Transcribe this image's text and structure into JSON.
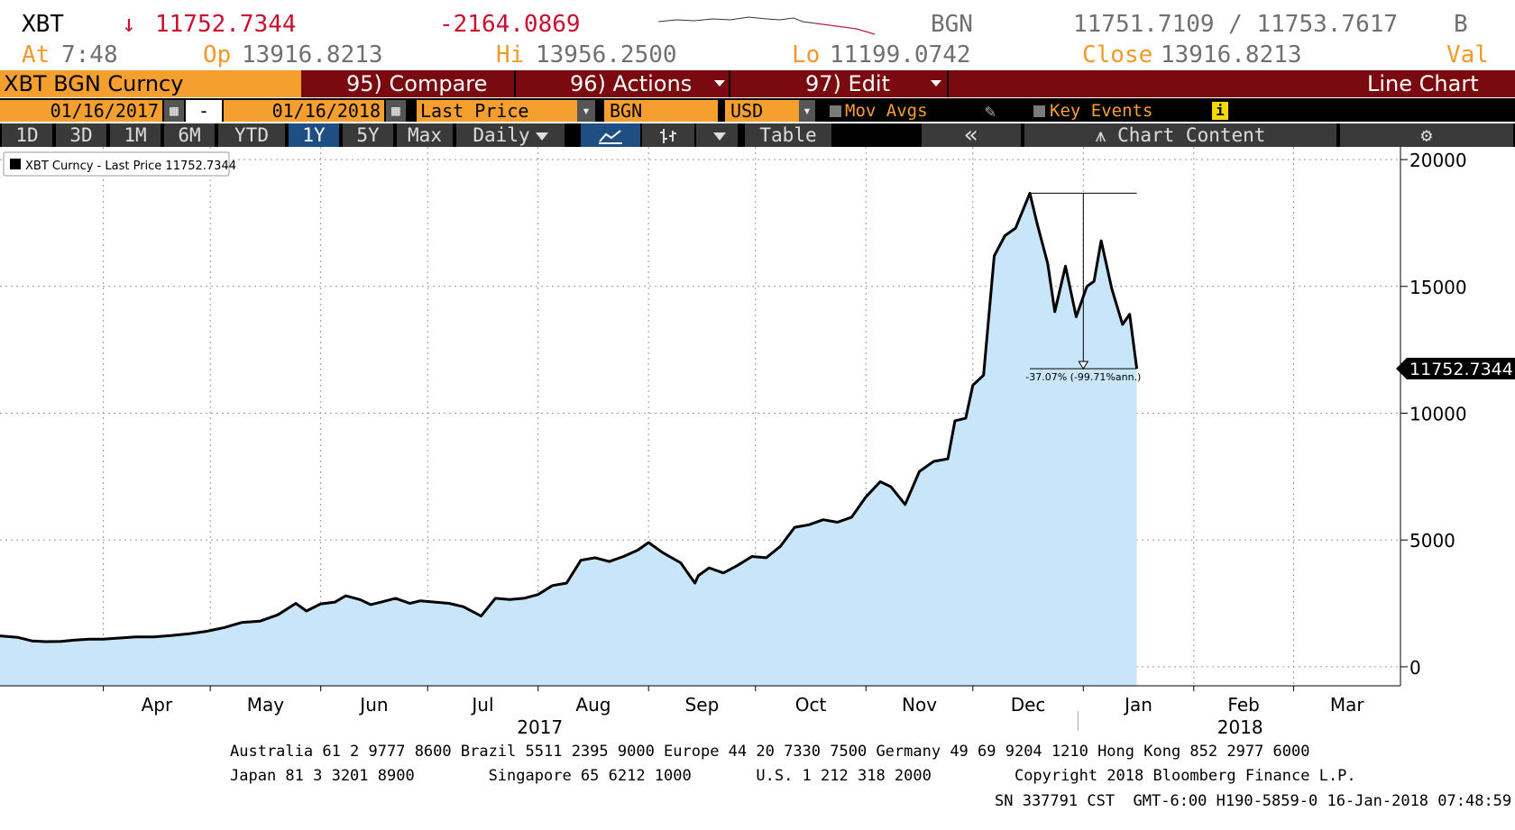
{
  "header": {
    "ticker": "XBT",
    "arrow": "↓",
    "last": "11752.7344",
    "change": "-2164.0869",
    "source": "BGN",
    "bid_ask": "11751.7109 / 11753.7617",
    "b_label": "B",
    "at_label": "At",
    "at_value": "7:48",
    "op_label": "Op",
    "op_value": "13916.8213",
    "hi_label": "Hi",
    "hi_value": "13956.2500",
    "lo_label": "Lo",
    "lo_value": "11199.0742",
    "close_label": "Close",
    "close_value": "13916.8213",
    "val_label": "Val"
  },
  "toolbar1": {
    "security": "XBT BGN Curncy",
    "compare": "95) Compare",
    "actions": "96) Actions",
    "edit": "97) Edit",
    "chart_type": "Line Chart"
  },
  "toolbar2": {
    "start_date": "01/16/2017",
    "dash": "-",
    "end_date": "01/16/2018",
    "field": "Last Price",
    "source": "BGN",
    "currency": "USD",
    "mov_avgs": "Mov Avgs",
    "key_events": "Key Events",
    "info": "i"
  },
  "toolbar3": {
    "periods": [
      "1D",
      "3D",
      "1M",
      "6M",
      "YTD",
      "1Y",
      "5Y",
      "Max"
    ],
    "selected": "1Y",
    "frequency": "Daily",
    "table": "Table",
    "collapse": "«",
    "chart_content": "Chart Content",
    "settings_icon": "gear-icon",
    "line_icon": "line-chart-icon",
    "bar_icon": "ohlc-icon",
    "calendar_icon": "calendar-icon"
  },
  "colors": {
    "accent": "#f5a02e",
    "bar_red": "#7a0a10",
    "selected": "#1f4f82",
    "area_fill": "#c8e5fa",
    "price_red": "#c8102e"
  },
  "chart_data": {
    "type": "area",
    "legend": "XBT Curncy - Last Price 11752.7344",
    "last_value_label": "11752.7344",
    "y_ticks": [
      0,
      5000,
      10000,
      15000,
      20000
    ],
    "ylim": [
      -750,
      20500
    ],
    "x_month_labels": [
      "Apr",
      "May",
      "Jun",
      "Jul",
      "Aug",
      "Sep",
      "Oct",
      "Nov",
      "Dec",
      "Jan",
      "Feb",
      "Mar"
    ],
    "x_year_labels": [
      "2017",
      "2018"
    ],
    "x_range": [
      "2017-03-03",
      "2018-03-31"
    ],
    "annotation": {
      "high_date": "2017-12-17",
      "high_value": 18674,
      "end_date": "2018-01-16",
      "end_value": 11752.7344,
      "label": "-37.07% (-99.71%ann.)"
    },
    "series": [
      {
        "x": [
          "2017-03-03",
          "2017-03-08",
          "2017-03-12",
          "2017-03-16",
          "2017-03-20",
          "2017-03-24",
          "2017-03-28",
          "2017-04-01",
          "2017-04-05",
          "2017-04-10",
          "2017-04-15",
          "2017-04-20",
          "2017-04-25",
          "2017-04-30",
          "2017-05-05",
          "2017-05-10",
          "2017-05-15",
          "2017-05-20",
          "2017-05-25",
          "2017-05-28",
          "2017-06-01",
          "2017-06-05",
          "2017-06-08",
          "2017-06-12",
          "2017-06-15",
          "2017-06-18",
          "2017-06-22",
          "2017-06-26",
          "2017-06-29",
          "2017-07-03",
          "2017-07-07",
          "2017-07-11",
          "2017-07-16",
          "2017-07-20",
          "2017-07-24",
          "2017-07-28",
          "2017-08-01",
          "2017-08-05",
          "2017-08-09",
          "2017-08-13",
          "2017-08-17",
          "2017-08-21",
          "2017-08-25",
          "2017-08-29",
          "2017-09-01",
          "2017-09-05",
          "2017-09-10",
          "2017-09-14",
          "2017-09-15",
          "2017-09-18",
          "2017-09-22",
          "2017-09-26",
          "2017-09-30",
          "2017-10-04",
          "2017-10-08",
          "2017-10-12",
          "2017-10-16",
          "2017-10-20",
          "2017-10-24",
          "2017-10-28",
          "2017-11-01",
          "2017-11-05",
          "2017-11-08",
          "2017-11-12",
          "2017-11-16",
          "2017-11-20",
          "2017-11-24",
          "2017-11-26",
          "2017-11-29",
          "2017-12-01",
          "2017-12-04",
          "2017-12-07",
          "2017-12-10",
          "2017-12-13",
          "2017-12-17",
          "2017-12-19",
          "2017-12-22",
          "2017-12-24",
          "2017-12-27",
          "2017-12-30",
          "2018-01-02",
          "2018-01-04",
          "2018-01-06",
          "2018-01-09",
          "2018-01-12",
          "2018-01-14",
          "2018-01-16"
        ],
        "y": [
          1220,
          1160,
          1020,
          990,
          1000,
          1050,
          1090,
          1090,
          1130,
          1180,
          1180,
          1230,
          1300,
          1400,
          1550,
          1750,
          1800,
          2050,
          2500,
          2200,
          2480,
          2550,
          2800,
          2650,
          2450,
          2550,
          2700,
          2500,
          2600,
          2550,
          2500,
          2370,
          2000,
          2700,
          2650,
          2700,
          2850,
          3200,
          3300,
          4200,
          4300,
          4150,
          4350,
          4600,
          4900,
          4500,
          4100,
          3300,
          3600,
          3900,
          3700,
          4000,
          4350,
          4300,
          4750,
          5500,
          5600,
          5800,
          5700,
          5900,
          6700,
          7300,
          7100,
          6400,
          7700,
          8100,
          8200,
          9700,
          9800,
          11100,
          11500,
          16200,
          17000,
          17300,
          18674,
          17500,
          15900,
          14000,
          15800,
          13800,
          15000,
          15200,
          16800,
          14900,
          13500,
          13900,
          11752.7344
        ]
      }
    ]
  },
  "footer": {
    "line1": "Australia 61 2 9777 8600 Brazil 5511 2395 9000 Europe 44 20 7330 7500 Germany 49 69 9204 1210 Hong Kong 852 2977 6000",
    "line2": "Japan 81 3 3201 8900        Singapore 65 6212 1000       U.S. 1 212 318 2000         Copyright 2018 Bloomberg Finance L.P.",
    "line3": "SN 337791 CST  GMT-6:00 H190-5859-0 16-Jan-2018 07:48:59"
  }
}
